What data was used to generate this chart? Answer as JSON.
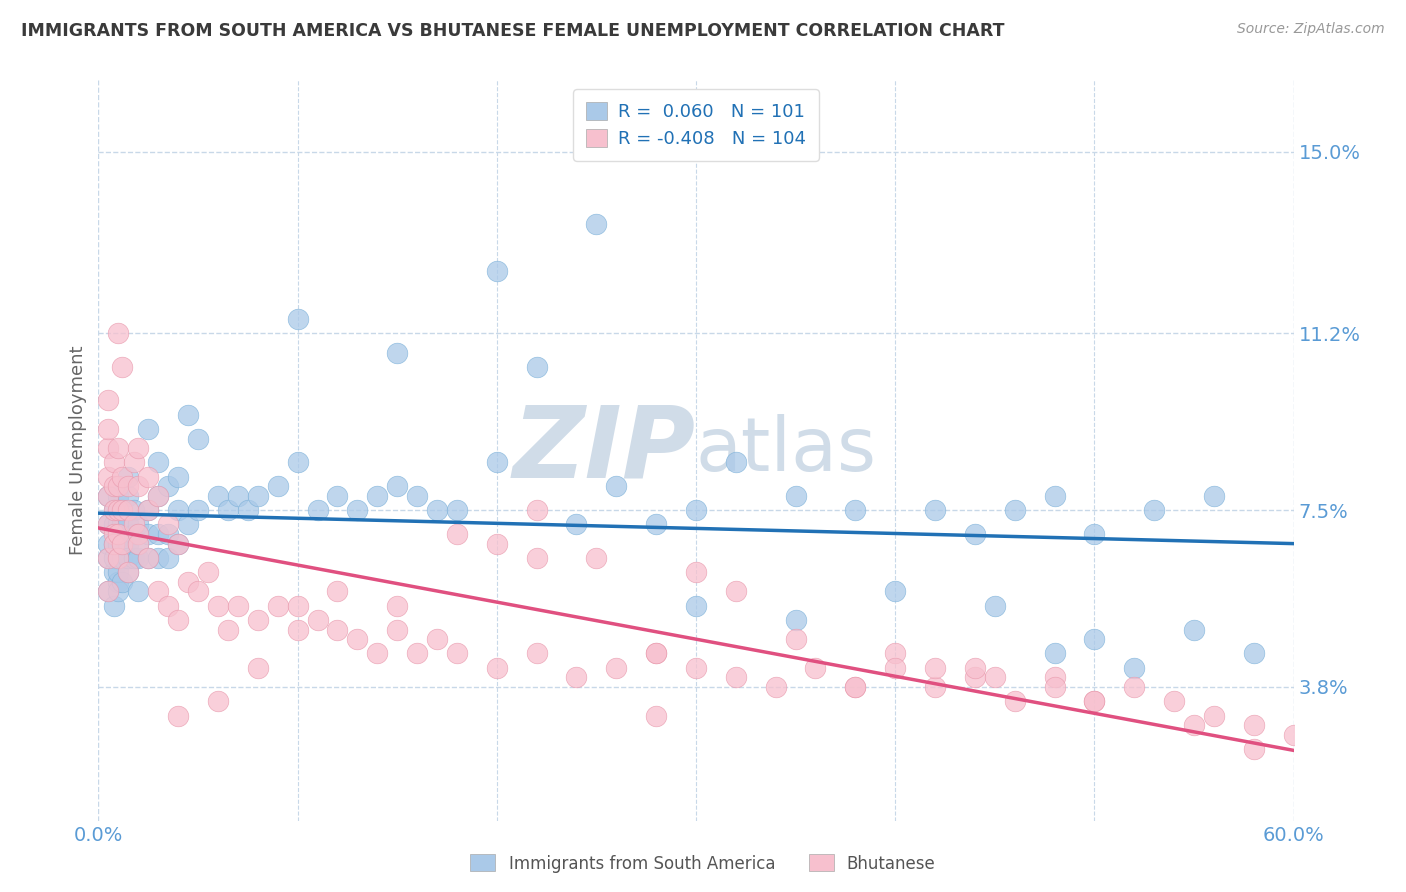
{
  "title": "IMMIGRANTS FROM SOUTH AMERICA VS BHUTANESE FEMALE UNEMPLOYMENT CORRELATION CHART",
  "source": "Source: ZipAtlas.com",
  "ylabel": "Female Unemployment",
  "xmin": 0.0,
  "xmax": 0.6,
  "ymin": 1.0,
  "ymax": 16.5,
  "yticks": [
    3.8,
    7.5,
    11.2,
    15.0
  ],
  "ytick_labels": [
    "3.8%",
    "7.5%",
    "11.2%",
    "15.0%"
  ],
  "xtick_positions": [
    0.0,
    0.1,
    0.2,
    0.3,
    0.4,
    0.5,
    0.6
  ],
  "xtick_labels": [
    "0.0%",
    "",
    "",
    "",
    "",
    "",
    "60.0%"
  ],
  "legend1_label": "Immigrants from South America",
  "legend2_label": "Bhutanese",
  "r1": 0.06,
  "n1": 101,
  "r2": -0.408,
  "n2": 104,
  "blue_color": "#aac9e8",
  "blue_edge_color": "#7ab0d8",
  "blue_line_color": "#2171b5",
  "pink_color": "#f7c0ce",
  "pink_edge_color": "#e896aa",
  "pink_line_color": "#e05080",
  "title_color": "#3a3a3a",
  "axis_tick_color": "#5a9bd5",
  "watermark_color": "#d0dce8",
  "background_color": "#ffffff",
  "grid_color": "#c8d8e8",
  "blue_scatter_x": [
    0.005,
    0.005,
    0.005,
    0.005,
    0.005,
    0.008,
    0.008,
    0.008,
    0.008,
    0.008,
    0.008,
    0.01,
    0.01,
    0.01,
    0.01,
    0.01,
    0.01,
    0.01,
    0.01,
    0.01,
    0.012,
    0.012,
    0.012,
    0.012,
    0.012,
    0.015,
    0.015,
    0.015,
    0.015,
    0.015,
    0.015,
    0.018,
    0.018,
    0.018,
    0.02,
    0.02,
    0.02,
    0.02,
    0.02,
    0.025,
    0.025,
    0.025,
    0.025,
    0.03,
    0.03,
    0.03,
    0.03,
    0.035,
    0.035,
    0.035,
    0.04,
    0.04,
    0.04,
    0.045,
    0.045,
    0.05,
    0.05,
    0.06,
    0.065,
    0.07,
    0.075,
    0.08,
    0.09,
    0.1,
    0.11,
    0.12,
    0.13,
    0.14,
    0.15,
    0.16,
    0.17,
    0.18,
    0.2,
    0.22,
    0.24,
    0.26,
    0.28,
    0.3,
    0.32,
    0.35,
    0.38,
    0.42,
    0.44,
    0.46,
    0.48,
    0.5,
    0.53,
    0.56,
    0.2,
    0.25,
    0.15,
    0.1,
    0.3,
    0.35,
    0.4,
    0.45,
    0.5,
    0.55,
    0.58,
    0.48,
    0.52
  ],
  "blue_scatter_y": [
    6.5,
    7.2,
    7.8,
    6.8,
    5.8,
    6.2,
    6.8,
    7.2,
    7.5,
    6.5,
    5.5,
    6.0,
    6.5,
    7.0,
    7.5,
    7.8,
    6.8,
    5.8,
    6.2,
    7.2,
    6.5,
    7.0,
    6.8,
    7.2,
    6.0,
    6.2,
    6.8,
    7.2,
    7.8,
    6.5,
    8.2,
    6.5,
    7.0,
    7.5,
    6.5,
    7.0,
    6.8,
    7.2,
    5.8,
    6.5,
    7.0,
    7.5,
    9.2,
    6.5,
    7.0,
    7.8,
    8.5,
    6.5,
    7.0,
    8.0,
    6.8,
    7.5,
    8.2,
    7.2,
    9.5,
    7.5,
    9.0,
    7.8,
    7.5,
    7.8,
    7.5,
    7.8,
    8.0,
    8.5,
    7.5,
    7.8,
    7.5,
    7.8,
    8.0,
    7.8,
    7.5,
    7.5,
    8.5,
    10.5,
    7.2,
    8.0,
    7.2,
    7.5,
    8.5,
    7.8,
    7.5,
    7.5,
    7.0,
    7.5,
    7.8,
    7.0,
    7.5,
    7.8,
    12.5,
    13.5,
    10.8,
    11.5,
    5.5,
    5.2,
    5.8,
    5.5,
    4.8,
    5.0,
    4.5,
    4.5,
    4.2
  ],
  "pink_scatter_x": [
    0.005,
    0.005,
    0.005,
    0.005,
    0.005,
    0.005,
    0.005,
    0.005,
    0.008,
    0.008,
    0.008,
    0.008,
    0.008,
    0.01,
    0.01,
    0.01,
    0.01,
    0.01,
    0.01,
    0.012,
    0.012,
    0.012,
    0.012,
    0.015,
    0.015,
    0.015,
    0.018,
    0.018,
    0.02,
    0.02,
    0.02,
    0.02,
    0.025,
    0.025,
    0.025,
    0.03,
    0.03,
    0.035,
    0.035,
    0.04,
    0.04,
    0.045,
    0.05,
    0.055,
    0.06,
    0.065,
    0.07,
    0.08,
    0.09,
    0.1,
    0.11,
    0.12,
    0.13,
    0.14,
    0.15,
    0.16,
    0.17,
    0.18,
    0.2,
    0.22,
    0.24,
    0.26,
    0.28,
    0.3,
    0.32,
    0.34,
    0.36,
    0.38,
    0.4,
    0.42,
    0.44,
    0.46,
    0.48,
    0.5,
    0.52,
    0.54,
    0.56,
    0.58,
    0.6,
    0.35,
    0.4,
    0.45,
    0.5,
    0.55,
    0.3,
    0.25,
    0.28,
    0.32,
    0.38,
    0.44,
    0.2,
    0.22,
    0.18,
    0.15,
    0.12,
    0.1,
    0.08,
    0.06,
    0.04,
    0.22,
    0.28,
    0.42,
    0.48,
    0.58
  ],
  "pink_scatter_y": [
    7.2,
    7.8,
    8.2,
    8.8,
    9.2,
    6.5,
    5.8,
    9.8,
    7.5,
    8.0,
    8.5,
    7.0,
    6.8,
    7.5,
    8.0,
    8.8,
    7.0,
    6.5,
    11.2,
    7.5,
    8.2,
    6.8,
    10.5,
    8.0,
    7.5,
    6.2,
    7.2,
    8.5,
    7.0,
    8.0,
    8.8,
    6.8,
    7.5,
    8.2,
    6.5,
    7.8,
    5.8,
    7.2,
    5.5,
    6.8,
    5.2,
    6.0,
    5.8,
    6.2,
    5.5,
    5.0,
    5.5,
    5.2,
    5.5,
    5.0,
    5.2,
    5.0,
    4.8,
    4.5,
    5.0,
    4.5,
    4.8,
    4.5,
    4.2,
    4.5,
    4.0,
    4.2,
    4.5,
    4.2,
    4.0,
    3.8,
    4.2,
    3.8,
    4.5,
    3.8,
    4.0,
    3.5,
    4.0,
    3.5,
    3.8,
    3.5,
    3.2,
    3.0,
    2.8,
    4.8,
    4.2,
    4.0,
    3.5,
    3.0,
    6.2,
    6.5,
    4.5,
    5.8,
    3.8,
    4.2,
    6.8,
    7.5,
    7.0,
    5.5,
    5.8,
    5.5,
    4.2,
    3.5,
    3.2,
    6.5,
    3.2,
    4.2,
    3.8,
    2.5
  ]
}
